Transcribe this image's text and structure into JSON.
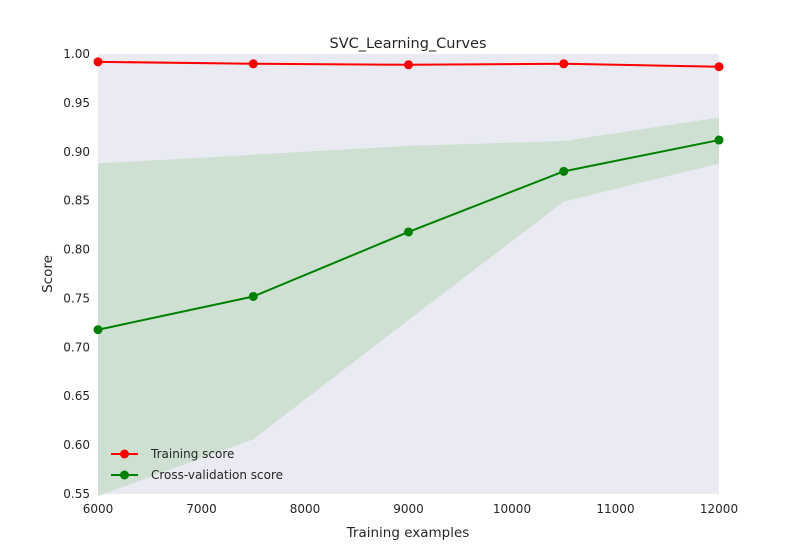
{
  "chart_data": {
    "type": "line",
    "title": "SVC_Learning_Curves",
    "xlabel": "Training examples",
    "ylabel": "Score",
    "xlim": [
      6000,
      12000
    ],
    "ylim": [
      0.55,
      1.0
    ],
    "x_ticks": [
      6000,
      7000,
      8000,
      9000,
      10000,
      11000,
      12000
    ],
    "y_ticks": [
      "0.55",
      "0.60",
      "0.65",
      "0.70",
      "0.75",
      "0.80",
      "0.85",
      "0.90",
      "0.95",
      "1.00"
    ],
    "x": [
      6000,
      7500,
      9000,
      10500,
      12000
    ],
    "series": [
      {
        "name": "Training score",
        "color": "#ff0000",
        "values": [
          0.992,
          0.99,
          0.989,
          0.99,
          0.987
        ],
        "band_lower": [
          0.992,
          0.99,
          0.989,
          0.99,
          0.987
        ],
        "band_upper": [
          0.992,
          0.99,
          0.989,
          0.99,
          0.987
        ]
      },
      {
        "name": "Cross-validation score",
        "color": "#008000",
        "band_color": "#cde0d2",
        "values": [
          0.718,
          0.752,
          0.818,
          0.88,
          0.912
        ],
        "band_lower": [
          0.548,
          0.606,
          0.728,
          0.849,
          0.888
        ],
        "band_upper": [
          0.888,
          0.897,
          0.906,
          0.911,
          0.935
        ]
      }
    ],
    "grid": false,
    "background": "#eaeaf2",
    "legend_position": "lower-left"
  }
}
